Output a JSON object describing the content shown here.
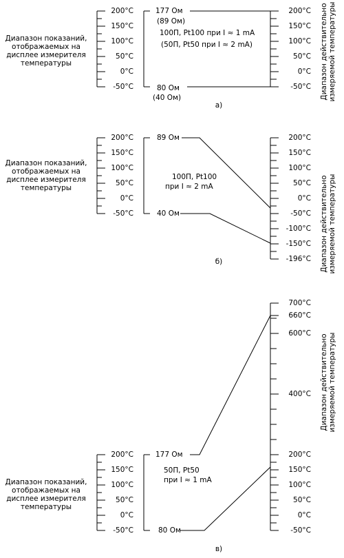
{
  "panels": [
    {
      "label": "а)",
      "left_caption": [
        "Диапазон показаний,",
        "отображаемых на",
        "дисплее измерителя",
        "температуры"
      ],
      "left_scale": [
        "200°C",
        "150°C",
        "100°C",
        "50°C",
        "0°C",
        "-50°C"
      ],
      "middle": [
        "177 Ом",
        "(89 Ом)",
        "100П, Pt100 при I ≈ 1 mA",
        "(50П, Pt50  при I ≈ 2 mA)",
        "80 Ом",
        "(40 Ом)"
      ],
      "right_scale": [
        "200°C",
        "150°C",
        "100°C",
        "50°C",
        "0°C",
        "-50°C"
      ],
      "right_caption": [
        "Диапазон действительно",
        "измеряемой температуры"
      ]
    },
    {
      "label": "б)",
      "left_caption": [
        "Диапазон показаний,",
        "отображаемых на",
        "дисплее измерителя",
        "температуры"
      ],
      "left_scale": [
        "200°C",
        "150°C",
        "100°C",
        "50°C",
        "0°C",
        "-50°C"
      ],
      "middle": [
        "89 Ом",
        "100П, Pt100",
        "при I ≈ 2 mA",
        "40 Ом"
      ],
      "right_scale": [
        "200°C",
        "150°C",
        "100°C",
        "50°C",
        "0°C",
        "-50°C",
        "-100°C",
        "-150°C",
        "-196°C"
      ],
      "right_caption": [
        "Диапазон действительно",
        "измеряемой температуры"
      ]
    },
    {
      "label": "в)",
      "left_caption": [
        "Диапазон показаний,",
        "отображаемых на",
        "дисплее измерителя",
        "температуры"
      ],
      "left_scale": [
        "200°C",
        "150°C",
        "100°C",
        "50°C",
        "0°C",
        "-50°C"
      ],
      "middle": [
        "177 Ом",
        "50П, Pt50",
        "при I ≈ 1 mA",
        "80 Ом"
      ],
      "right_scale": [
        "700°C",
        "660°C",
        "600°C",
        "400°C",
        "200°C",
        "150°C",
        "100°C",
        "50°C",
        "0°C",
        "-50°C"
      ],
      "right_caption": [
        "Диапазон действительно",
        "измеряемой температуры"
      ]
    }
  ]
}
